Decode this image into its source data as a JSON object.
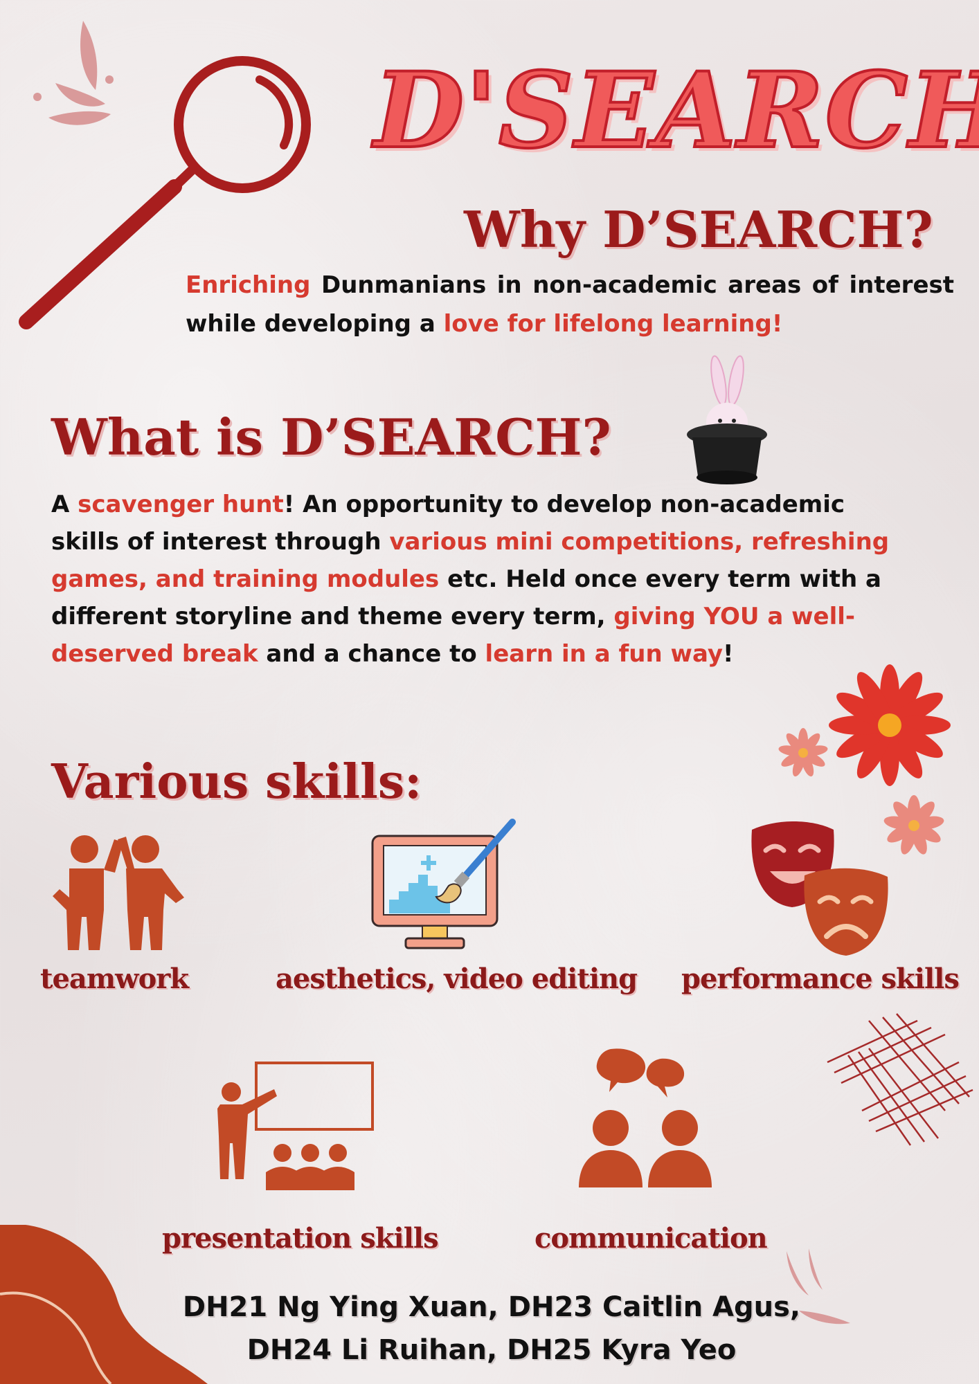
{
  "header": {
    "title": "D'SEARCH"
  },
  "why": {
    "heading": "Why D’SEARCH?",
    "p1": "Enriching",
    "p2": " Dunmanians in non-academic areas of interest while developing a ",
    "p3": "love for lifelong learning!"
  },
  "what": {
    "heading": "What is D’SEARCH?",
    "s1": "A ",
    "s2": "scavenger hunt",
    "s3": "! An opportunity to develop non-academic skills of interest through ",
    "s4": "various mini competitions, refreshing games, and training modules",
    "s5": " etc. Held once every term with a different storyline and theme every term, ",
    "s6": "giving YOU a well-deserved break",
    "s7": " and a chance to ",
    "s8": "learn in a fun way",
    "s9": "!"
  },
  "skills": {
    "heading": "Various skills:",
    "items": [
      {
        "label": "teamwork",
        "icon": "teamwork-icon"
      },
      {
        "label": "aesthetics, video editing",
        "icon": "monitor-paintbrush-icon"
      },
      {
        "label": "performance skills",
        "icon": "theatre-masks-icon"
      },
      {
        "label": "presentation skills",
        "icon": "presentation-icon"
      },
      {
        "label": "communication",
        "icon": "communication-icon"
      }
    ]
  },
  "credits": {
    "line1": "DH21 Ng Ying Xuan, DH23 Caitlin Agus,",
    "line2": "DH24 Li Ruihan, DH25 Kyra Yeo"
  },
  "colors": {
    "heading": "#9b1b1b",
    "highlight": "#d63a2f",
    "icon": "#c24a26",
    "title_fill": "#f05a5a",
    "title_stroke": "#c21f2a"
  }
}
